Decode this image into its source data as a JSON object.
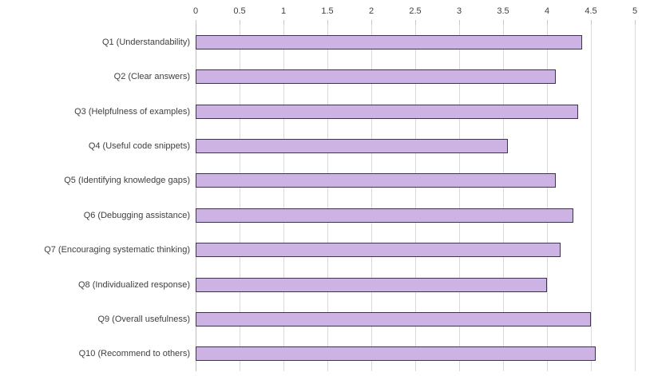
{
  "chart_data": {
    "type": "bar",
    "orientation": "horizontal",
    "title": "",
    "xlabel": "",
    "ylabel": "",
    "categories": [
      "Q1 (Understandability)",
      "Q2 (Clear answers)",
      "Q3 (Helpfulness of examples)",
      "Q4 (Useful code snippets)",
      "Q5 (Identifying knowledge gaps)",
      "Q6 (Debugging assistance)",
      "Q7 (Encouraging systematic thinking)",
      "Q8 (Individualized response)",
      "Q9 (Overall usefulness)",
      "Q10 (Recommend to others)"
    ],
    "values": [
      4.4,
      4.1,
      4.35,
      3.55,
      4.1,
      4.3,
      4.15,
      4.0,
      4.5,
      4.55
    ],
    "xlim": [
      0,
      5
    ],
    "xticks": [
      0,
      0.5,
      1,
      1.5,
      2,
      2.5,
      3,
      3.5,
      4,
      4.5,
      5
    ],
    "xtick_labels": [
      "0",
      "0.5",
      "1",
      "1.5",
      "2",
      "2.5",
      "3",
      "3.5",
      "4",
      "4.5",
      "5"
    ],
    "grid": true,
    "value_axis_position": "top",
    "legend_position": "none",
    "colors": {
      "bar_fill": "#cdb2e4",
      "bar_border": "#3f3151",
      "gridline": "#d9d9d9",
      "axis_line": "#bfbfbf",
      "text": "#404040",
      "background": "#ffffff"
    }
  }
}
